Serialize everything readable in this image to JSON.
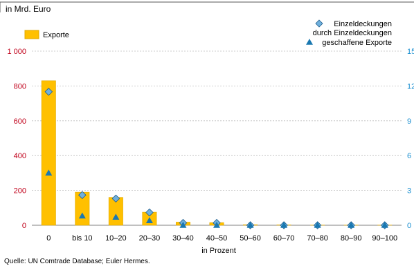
{
  "header": {
    "unit_note": "in Mrd. Euro"
  },
  "legend": {
    "exports": "Exporte",
    "single_cover_line1": "Einzeldeckungen",
    "created_exports_line1": "durch Einzeldeckungen",
    "created_exports_line2": "geschaffene Exporte"
  },
  "footer": {
    "source": "Quelle: UN Comtrade Database; Euler Hermes."
  },
  "colors": {
    "bar": "#ffc000",
    "bar_edge": "#e0a800",
    "diamond": "#6fb0dd",
    "diamond_edge": "#1e5d8c",
    "triangle": "#1a78b0",
    "left_axis": "#c0001a",
    "right_axis": "#1a8fd0",
    "grid": "#bdbdbd"
  },
  "chart_data": {
    "type": "bar",
    "xlabel": "in Prozent",
    "categories": [
      "0",
      "bis 10",
      "10–20",
      "20–30",
      "30–40",
      "40–50",
      "50–60",
      "60–70",
      "70–80",
      "80–90",
      "90–100"
    ],
    "left_axis": {
      "ylim": [
        0,
        1000
      ],
      "ticks": [
        0,
        200,
        400,
        600,
        800,
        1000
      ],
      "tick_labels": [
        "0",
        "200",
        "400",
        "600",
        "800",
        "1 000"
      ]
    },
    "right_axis": {
      "ylim": [
        0,
        15
      ],
      "ticks": [
        0,
        3,
        6,
        9,
        12,
        15
      ],
      "tick_labels": [
        "0",
        "3",
        "6",
        "9",
        "12",
        "15"
      ]
    },
    "grid": true,
    "legend_position": "top",
    "series": [
      {
        "name": "Exporte",
        "kind": "bar",
        "axis": "left",
        "values": [
          830,
          190,
          160,
          75,
          18,
          15,
          3,
          2,
          1,
          1,
          1
        ]
      },
      {
        "name": "Einzeldeckungen",
        "kind": "diamond",
        "axis": "right",
        "values": [
          11.5,
          2.6,
          2.3,
          1.1,
          0.2,
          0.2,
          0.0,
          0.0,
          0.0,
          0.0,
          0.0
        ]
      },
      {
        "name": "durch Einzeldeckungen geschaffene Exporte",
        "kind": "triangle",
        "axis": "right",
        "values": [
          4.5,
          0.8,
          0.7,
          0.4,
          0.0,
          0.0,
          0.0,
          0.0,
          0.0,
          0.0,
          0.0
        ]
      }
    ]
  }
}
